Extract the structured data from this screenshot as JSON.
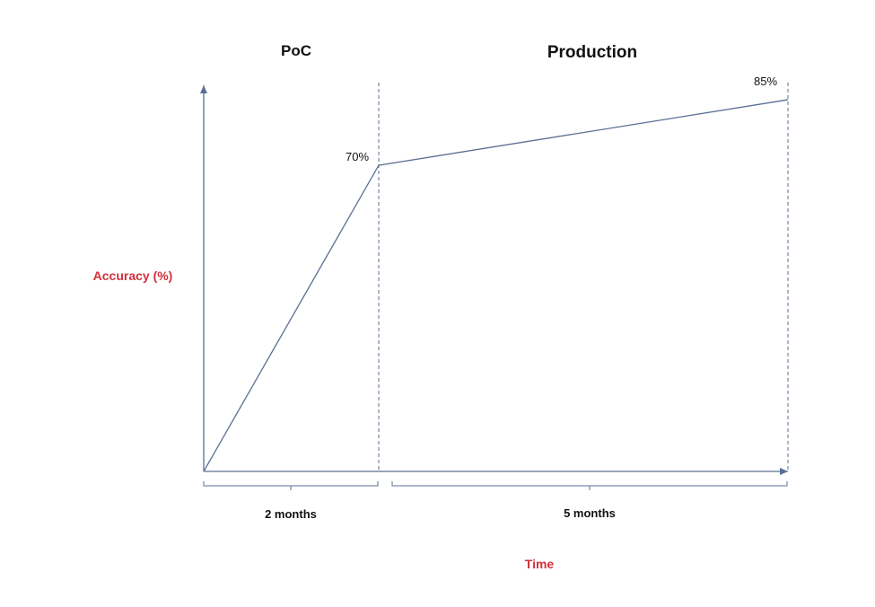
{
  "chart_data": {
    "type": "line",
    "phases": [
      {
        "label": "PoC",
        "duration_label": "2 months",
        "months": 2
      },
      {
        "label": "Production",
        "duration_label": "5 months",
        "months": 5
      }
    ],
    "series": [
      {
        "points": [
          {
            "month": 0,
            "accuracy": 0
          },
          {
            "month": 2,
            "accuracy": 70
          },
          {
            "month": 7,
            "accuracy": 85
          }
        ]
      }
    ],
    "data_labels": [
      {
        "month": 2,
        "text": "70%"
      },
      {
        "month": 7,
        "text": "85%"
      }
    ],
    "xlabel": "Time",
    "ylabel": "Accuracy (%)",
    "xlim": [
      0,
      7
    ],
    "ylim": [
      0,
      100
    ],
    "grid": false,
    "colors": {
      "line": "#5b6f94",
      "axis_label": "#d1313c",
      "text": "#111111"
    }
  }
}
